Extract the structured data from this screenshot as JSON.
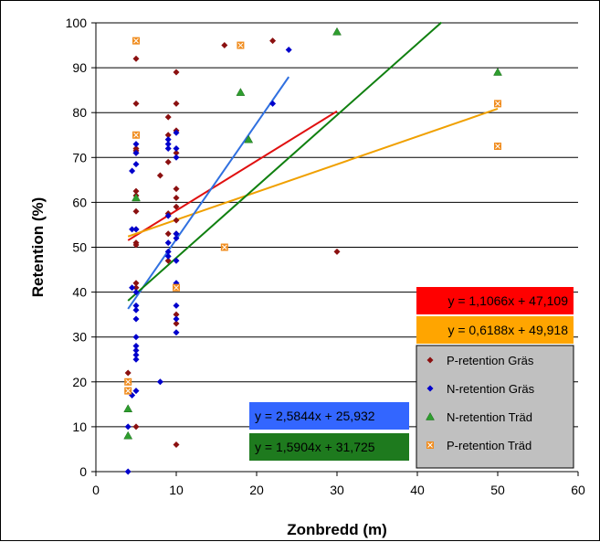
{
  "chart_data": {
    "type": "scatter",
    "title": "",
    "xlabel": "Zonbredd (m)",
    "ylabel": "Retention (%)",
    "xlim": [
      0,
      60
    ],
    "ylim": [
      0,
      100
    ],
    "xticks": [
      "0",
      "10",
      "20",
      "30",
      "40",
      "50",
      "60"
    ],
    "yticks": [
      "0",
      "10",
      "20",
      "30",
      "40",
      "50",
      "60",
      "70",
      "80",
      "90",
      "100"
    ],
    "grid": "horizontal",
    "legend_position": "bottom-right",
    "series": [
      {
        "name": "P-retention Gräs",
        "color": "#8B1010",
        "marker": "diamond",
        "points": [
          [
            4,
            22
          ],
          [
            4,
            18
          ],
          [
            5,
            92
          ],
          [
            5,
            82
          ],
          [
            5,
            72
          ],
          [
            5,
            71.5
          ],
          [
            5,
            71
          ],
          [
            5,
            62.5
          ],
          [
            5,
            61.5
          ],
          [
            5,
            58
          ],
          [
            5,
            54
          ],
          [
            5,
            51
          ],
          [
            5,
            50.5
          ],
          [
            5,
            42
          ],
          [
            5,
            41
          ],
          [
            5,
            10
          ],
          [
            8,
            66
          ],
          [
            9,
            79
          ],
          [
            9,
            75
          ],
          [
            9,
            69
          ],
          [
            9,
            57.5
          ],
          [
            9,
            53
          ],
          [
            9,
            47
          ],
          [
            10,
            89
          ],
          [
            10,
            82
          ],
          [
            10,
            76
          ],
          [
            10,
            71
          ],
          [
            10,
            63
          ],
          [
            10,
            61
          ],
          [
            10,
            59
          ],
          [
            10,
            56
          ],
          [
            10,
            53
          ],
          [
            10,
            35
          ],
          [
            10,
            33
          ],
          [
            10,
            6
          ],
          [
            16,
            95
          ],
          [
            22,
            96
          ],
          [
            30,
            49
          ]
        ]
      },
      {
        "name": "N-retention Gräs",
        "color": "#0000CC",
        "marker": "diamond",
        "points": [
          [
            4,
            10
          ],
          [
            4,
            0
          ],
          [
            4.5,
            67
          ],
          [
            4.5,
            54
          ],
          [
            4.5,
            41
          ],
          [
            4.5,
            17
          ],
          [
            5,
            73
          ],
          [
            5,
            71
          ],
          [
            5,
            68.5
          ],
          [
            5,
            54
          ],
          [
            5,
            40
          ],
          [
            5,
            37
          ],
          [
            5,
            36
          ],
          [
            5,
            34
          ],
          [
            5,
            30
          ],
          [
            5,
            28
          ],
          [
            5,
            27
          ],
          [
            5,
            26
          ],
          [
            5,
            25
          ],
          [
            5,
            18
          ],
          [
            8,
            20
          ],
          [
            9,
            74
          ],
          [
            9,
            73
          ],
          [
            9,
            72
          ],
          [
            9,
            57
          ],
          [
            9,
            51
          ],
          [
            9,
            49
          ],
          [
            9,
            48
          ],
          [
            10,
            75.5
          ],
          [
            10,
            72
          ],
          [
            10,
            70
          ],
          [
            10,
            53
          ],
          [
            10,
            52
          ],
          [
            10,
            47
          ],
          [
            10,
            42
          ],
          [
            10,
            41
          ],
          [
            10,
            37
          ],
          [
            10,
            34
          ],
          [
            10,
            31
          ],
          [
            22,
            82
          ],
          [
            24,
            94
          ]
        ]
      },
      {
        "name": "N-retention Träd",
        "color": "#2E9E2E",
        "marker": "triangle",
        "points": [
          [
            4,
            14
          ],
          [
            4,
            8
          ],
          [
            5,
            61
          ],
          [
            18,
            84.5
          ],
          [
            19,
            74
          ],
          [
            30,
            98
          ],
          [
            50,
            89
          ]
        ]
      },
      {
        "name": "P-retention Träd",
        "color": "#F08C1E",
        "marker": "square-x",
        "points": [
          [
            4,
            20
          ],
          [
            4,
            18
          ],
          [
            5,
            96
          ],
          [
            5,
            75
          ],
          [
            10,
            41
          ],
          [
            16,
            50
          ],
          [
            18,
            95
          ],
          [
            50,
            82
          ],
          [
            50,
            72.5
          ]
        ]
      }
    ],
    "trendlines": [
      {
        "series": "P-retention Gräs",
        "color": "#E01010",
        "slope": 1.1066,
        "intercept": 47.109,
        "x_range": [
          4,
          30
        ],
        "equation": "y = 1,1066x + 47,109"
      },
      {
        "series": "P-retention Träd",
        "color": "#F0A000",
        "slope": 0.6188,
        "intercept": 49.918,
        "x_range": [
          4,
          50
        ],
        "equation": "y = 0,6188x + 49,918"
      },
      {
        "series": "N-retention Gräs",
        "color": "#3070E0",
        "slope": 2.5844,
        "intercept": 25.932,
        "x_range": [
          4,
          24
        ],
        "equation": "y = 2,5844x + 25,932"
      },
      {
        "series": "N-retention Träd",
        "color": "#108010",
        "slope": 1.5904,
        "intercept": 31.725,
        "x_range": [
          4,
          43
        ],
        "equation": "y = 1,5904x + 31,725"
      }
    ],
    "equation_boxes": [
      {
        "text": "y = 1,1066x + 47,109",
        "background": "#FF0000"
      },
      {
        "text": "y = 0,6188x + 49,918",
        "background": "#FFA500"
      },
      {
        "text": "y = 2,5844x + 25,932",
        "background": "#3366FF"
      },
      {
        "text": "y = 1,5904x + 31,725",
        "background": "#1E7A1E"
      }
    ]
  }
}
